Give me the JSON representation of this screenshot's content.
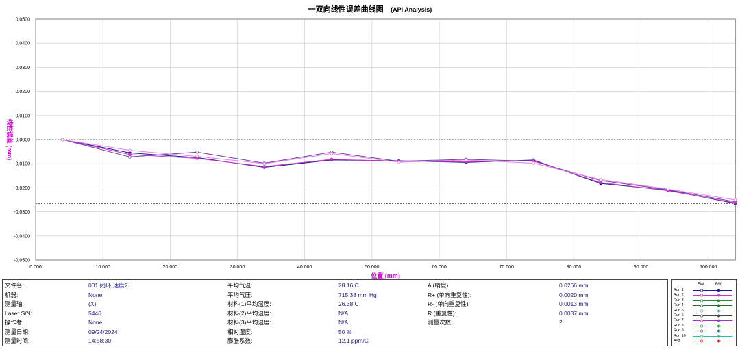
{
  "header": {
    "title": "一双向线性误差曲线图",
    "subtitle": "(API Analysis)"
  },
  "chart_data": {
    "type": "line",
    "xlabel": "位置 (mm)",
    "ylabel": "线性误差 (mm)",
    "xlim": [
      0,
      104
    ],
    "ylim": [
      -0.05,
      0.05
    ],
    "x_ticks": [
      "0.000",
      "10.000",
      "20.000",
      "30.000",
      "40.000",
      "50.000",
      "60.000",
      "70.000",
      "80.000",
      "90.000",
      "100.000"
    ],
    "y_ticks": [
      "0.0500",
      "0.0400",
      "0.0300",
      "0.0200",
      "0.0100",
      "0.0000",
      "-0.0100",
      "-0.0200",
      "-0.0300",
      "-0.0400",
      "-0.0500"
    ],
    "reference_lines": [
      0.0,
      -0.0266
    ],
    "grid": true,
    "x": [
      4,
      14,
      24,
      34,
      44,
      54,
      64,
      74,
      84,
      94,
      104
    ],
    "series": [
      {
        "name": "Run 1 FW",
        "color": "#1a1a8a",
        "values": [
          0.0,
          -0.0055,
          -0.0075,
          -0.0115,
          -0.0085,
          -0.0088,
          -0.0095,
          -0.0085,
          -0.0182,
          -0.021,
          -0.0265
        ]
      },
      {
        "name": "Run 1 BW",
        "color": "#6a3fa0",
        "values": [
          0.0,
          -0.0072,
          -0.0052,
          -0.0098,
          -0.0052,
          -0.009,
          -0.0082,
          -0.009,
          -0.017,
          -0.0208,
          -0.0258
        ]
      },
      {
        "name": "Run 2 FW",
        "color": "#cc33cc",
        "values": [
          0.0,
          -0.0062,
          -0.0078,
          -0.0112,
          -0.0082,
          -0.009,
          -0.0092,
          -0.0088,
          -0.0178,
          -0.0212,
          -0.0262
        ]
      },
      {
        "name": "Run 2 BW",
        "color": "#e080e0",
        "values": [
          0.0,
          -0.0045,
          -0.007,
          -0.01,
          -0.0058,
          -0.0094,
          -0.0085,
          -0.0098,
          -0.0166,
          -0.0205,
          -0.025
        ]
      }
    ]
  },
  "info": {
    "rows": [
      [
        [
          "文件名:",
          "001 闭环 速度2"
        ],
        [
          "平均气温:",
          "28.16 C"
        ],
        [
          "A (精度):",
          "0.0266 mm"
        ]
      ],
      [
        [
          "机器:",
          "None"
        ],
        [
          "平均气压:",
          "715.38 mm Hg"
        ],
        [
          "R+ (单向重复性):",
          "0.0020 mm"
        ]
      ],
      [
        [
          "测量轴:",
          "(X)"
        ],
        [
          "材料(1)平均温度:",
          "26.38 C"
        ],
        [
          "R- (单向重复性):",
          "0.0013 mm"
        ]
      ],
      [
        [
          "Laser S/N:",
          "5446"
        ],
        [
          "材料(2)平均温度:",
          "N/A"
        ],
        [
          "R (重复性):",
          "0.0037 mm"
        ]
      ],
      [
        [
          "操作者:",
          "None"
        ],
        [
          "材料(3)平均温度:",
          "N/A"
        ],
        [
          "测量次数:",
          "2"
        ]
      ],
      [
        [
          "测量日期:",
          "09/24/2024"
        ],
        [
          "相对湿度:",
          "50 %"
        ],
        [
          "",
          ""
        ]
      ],
      [
        [
          "测量时间:",
          "14:58:30"
        ],
        [
          "膨胀系数:",
          "12.1 ppm/C"
        ],
        [
          "",
          ""
        ]
      ]
    ]
  },
  "legend": {
    "fw": "FW",
    "bw": "BW",
    "runs": [
      {
        "name": "Run 1",
        "color": "#1a1a8a"
      },
      {
        "name": "Run 2",
        "color": "#cc33cc"
      },
      {
        "name": "Run 3",
        "color": "#2a8a2a"
      },
      {
        "name": "Run 4",
        "color": "#2a6a2a"
      },
      {
        "name": "Run 5",
        "color": "#55aadd"
      },
      {
        "name": "Run 6",
        "color": "#444444"
      },
      {
        "name": "Run 7",
        "color": "#9933cc"
      },
      {
        "name": "Run 8",
        "color": "#33aa33"
      },
      {
        "name": "Run 9",
        "color": "#3366aa"
      },
      {
        "name": "Run 10",
        "color": "#33bb99"
      },
      {
        "name": "Avg.",
        "color": "#dd2222"
      }
    ]
  }
}
